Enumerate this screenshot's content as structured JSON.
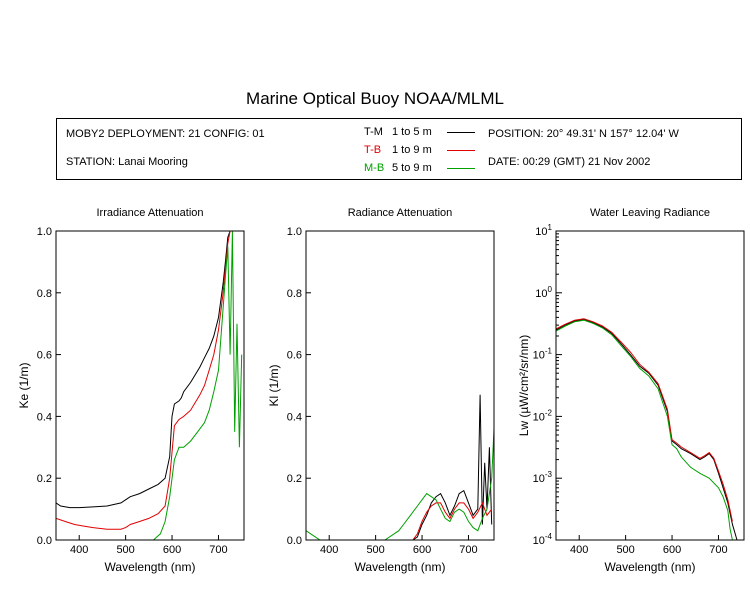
{
  "title": "Marine Optical Buoy NOAA/MLML",
  "info": {
    "deployment": "MOBY2 DEPLOYMENT: 21 CONFIG: 01",
    "station": "STATION: Lanai Mooring",
    "position": "POSITION: 20° 49.31' N   157° 12.04' W",
    "date": "DATE: 00:29 (GMT) 21 Nov 2002",
    "legend": [
      {
        "code": "T-M",
        "range": "1 to 5  m",
        "color": "#000000"
      },
      {
        "code": "T-B",
        "range": "1 to 9  m",
        "color": "#e00000"
      },
      {
        "code": "M-B",
        "range": "5 to 9  m",
        "color": "#00a000"
      }
    ]
  },
  "colors": {
    "T-M": "#000000",
    "T-B": "#e00000",
    "M-B": "#00a000"
  },
  "chart_data": [
    {
      "type": "line",
      "title": "Irradiance Attenuation",
      "xlabel": "Wavelength (nm)",
      "ylabel": "Ke  (1/m)",
      "xlim": [
        350,
        755
      ],
      "ylim": [
        0,
        1.0
      ],
      "xticks": [
        400,
        500,
        600,
        700
      ],
      "yticks": [
        "0.0",
        "0.2",
        "0.4",
        "0.6",
        "0.8",
        "1.0"
      ],
      "yscale": "linear",
      "series": [
        {
          "name": "T-M",
          "x": [
            350,
            360,
            380,
            400,
            430,
            460,
            490,
            500,
            510,
            530,
            550,
            570,
            585,
            595,
            600,
            605,
            615,
            620,
            625,
            640,
            660,
            670,
            680,
            690,
            700,
            710,
            715,
            720,
            725,
            730,
            740,
            750
          ],
          "y": [
            0.12,
            0.11,
            0.105,
            0.105,
            0.107,
            0.11,
            0.12,
            0.13,
            0.14,
            0.15,
            0.165,
            0.18,
            0.2,
            0.27,
            0.4,
            0.44,
            0.45,
            0.46,
            0.48,
            0.51,
            0.56,
            0.59,
            0.62,
            0.66,
            0.72,
            0.83,
            0.9,
            0.98,
            1.0,
            1.0,
            1.0,
            1.0
          ]
        },
        {
          "name": "T-B",
          "x": [
            350,
            370,
            390,
            410,
            430,
            460,
            490,
            500,
            510,
            530,
            550,
            570,
            585,
            595,
            605,
            615,
            625,
            640,
            660,
            670,
            680,
            690,
            700,
            710,
            720,
            725,
            730,
            740,
            750
          ],
          "y": [
            0.07,
            0.06,
            0.05,
            0.045,
            0.04,
            0.035,
            0.035,
            0.04,
            0.05,
            0.06,
            0.07,
            0.085,
            0.11,
            0.2,
            0.37,
            0.39,
            0.4,
            0.42,
            0.47,
            0.5,
            0.55,
            0.6,
            0.68,
            0.8,
            0.96,
            1.0,
            1.0,
            1.0,
            1.0
          ]
        },
        {
          "name": "M-B",
          "x": [
            350,
            380,
            420,
            460,
            500,
            540,
            560,
            575,
            585,
            595,
            605,
            615,
            625,
            640,
            660,
            670,
            680,
            690,
            700,
            705,
            710,
            715,
            720,
            725,
            730,
            735,
            740,
            745,
            750
          ],
          "y": [
            0.0,
            0.0,
            0.0,
            0.0,
            0.0,
            0.0,
            0.0,
            0.02,
            0.06,
            0.14,
            0.26,
            0.3,
            0.3,
            0.32,
            0.36,
            0.38,
            0.42,
            0.48,
            0.55,
            0.65,
            0.75,
            0.85,
            0.95,
            0.6,
            1.0,
            0.35,
            0.7,
            0.3,
            0.6
          ]
        }
      ]
    },
    {
      "type": "line",
      "title": "Radiance Attenuation",
      "xlabel": "Wavelength (nm)",
      "ylabel": "Kl  (1/m)",
      "xlim": [
        350,
        755
      ],
      "ylim": [
        0,
        1.0
      ],
      "xticks": [
        400,
        500,
        600,
        700
      ],
      "yticks": [
        "0.0",
        "0.2",
        "0.4",
        "0.6",
        "0.8",
        "1.0"
      ],
      "yscale": "linear",
      "series": [
        {
          "name": "T-M",
          "x": [
            350,
            360,
            370,
            380,
            560,
            580,
            590,
            600,
            610,
            620,
            630,
            640,
            650,
            660,
            670,
            680,
            690,
            700,
            710,
            720,
            725,
            730,
            735,
            740,
            745,
            750
          ],
          "y": [
            0.0,
            0.0,
            0.0,
            0.0,
            0.0,
            0.0,
            0.01,
            0.05,
            0.08,
            0.12,
            0.14,
            0.15,
            0.12,
            0.08,
            0.11,
            0.15,
            0.16,
            0.12,
            0.08,
            0.1,
            0.47,
            0.05,
            0.25,
            0.1,
            0.3,
            0.05
          ]
        },
        {
          "name": "T-B",
          "x": [
            350,
            380,
            560,
            580,
            590,
            600,
            610,
            620,
            630,
            640,
            650,
            660,
            670,
            680,
            690,
            700,
            710,
            720,
            730,
            740,
            750
          ],
          "y": [
            0.0,
            0.0,
            0.0,
            0.0,
            0.02,
            0.06,
            0.09,
            0.11,
            0.12,
            0.12,
            0.09,
            0.07,
            0.1,
            0.12,
            0.12,
            0.1,
            0.07,
            0.09,
            0.12,
            0.08,
            0.1
          ]
        },
        {
          "name": "M-B",
          "x": [
            350,
            360,
            370,
            380,
            520,
            540,
            550,
            560,
            570,
            580,
            590,
            600,
            610,
            620,
            630,
            640,
            650,
            660,
            670,
            680,
            690,
            700,
            710,
            720,
            730,
            740,
            750,
            755
          ],
          "y": [
            0.03,
            0.02,
            0.01,
            0.0,
            0.0,
            0.02,
            0.03,
            0.05,
            0.07,
            0.09,
            0.11,
            0.13,
            0.15,
            0.14,
            0.13,
            0.1,
            0.07,
            0.06,
            0.09,
            0.1,
            0.09,
            0.06,
            0.04,
            0.03,
            0.07,
            0.1,
            0.2,
            0.36
          ]
        }
      ]
    },
    {
      "type": "line",
      "title": "Water Leaving Radiance",
      "xlabel": "Wavelength (nm)",
      "ylabel": "Lw  (µW/cm²/sr/nm)",
      "xlim": [
        350,
        755
      ],
      "ylim": [
        0.0001,
        10
      ],
      "xticks": [
        400,
        500,
        600,
        700
      ],
      "yscale": "log",
      "yticks": [
        {
          "base": "10",
          "exp": "1",
          "value": 10
        },
        {
          "base": "10",
          "exp": "0",
          "value": 1
        },
        {
          "base": "10",
          "exp": "-1",
          "value": 0.1
        },
        {
          "base": "10",
          "exp": "-2",
          "value": 0.01
        },
        {
          "base": "10",
          "exp": "-3",
          "value": 0.001
        },
        {
          "base": "10",
          "exp": "-4",
          "value": 0.0001
        }
      ],
      "series": [
        {
          "name": "T-M",
          "x": [
            350,
            370,
            390,
            410,
            430,
            450,
            470,
            490,
            510,
            530,
            550,
            570,
            590,
            600,
            610,
            620,
            640,
            660,
            670,
            680,
            690,
            700,
            710,
            720,
            730,
            740
          ],
          "y": [
            0.25,
            0.3,
            0.35,
            0.37,
            0.33,
            0.28,
            0.22,
            0.15,
            0.1,
            0.065,
            0.05,
            0.032,
            0.012,
            0.004,
            0.0035,
            0.003,
            0.0025,
            0.002,
            0.0022,
            0.0025,
            0.002,
            0.0012,
            0.0007,
            0.0004,
            0.00018,
            0.0001
          ]
        },
        {
          "name": "T-B",
          "x": [
            350,
            370,
            390,
            410,
            430,
            450,
            470,
            490,
            510,
            530,
            550,
            570,
            590,
            600,
            610,
            620,
            640,
            660,
            670,
            680,
            690,
            700,
            710,
            720,
            730
          ],
          "y": [
            0.26,
            0.31,
            0.36,
            0.38,
            0.34,
            0.29,
            0.23,
            0.16,
            0.11,
            0.07,
            0.052,
            0.034,
            0.013,
            0.0042,
            0.0037,
            0.0032,
            0.0026,
            0.0021,
            0.0023,
            0.0026,
            0.0021,
            0.0013,
            0.0008,
            0.00045,
            0.0002
          ]
        },
        {
          "name": "M-B",
          "x": [
            350,
            370,
            390,
            410,
            430,
            450,
            470,
            490,
            510,
            530,
            550,
            570,
            590,
            600,
            610,
            620,
            640,
            660,
            680,
            700,
            710,
            720,
            725,
            730
          ],
          "y": [
            0.24,
            0.29,
            0.34,
            0.36,
            0.32,
            0.27,
            0.21,
            0.14,
            0.095,
            0.06,
            0.045,
            0.028,
            0.01,
            0.0035,
            0.003,
            0.0022,
            0.0015,
            0.0012,
            0.001,
            0.0007,
            0.0005,
            0.0003,
            0.00015,
            0.0001
          ]
        }
      ]
    }
  ]
}
